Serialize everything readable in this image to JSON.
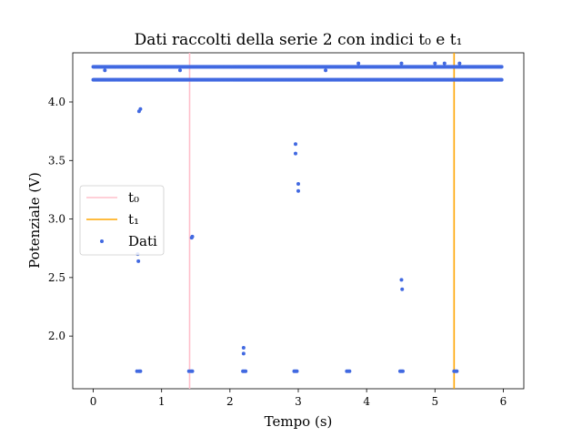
{
  "chart_data": {
    "type": "scatter",
    "title": "Dati raccolti della serie 2 con indici t₀ e t₁",
    "xlabel": "Tempo (s)",
    "ylabel": "Potenziale (V)",
    "xlim": [
      -0.3,
      6.3
    ],
    "ylim": [
      1.55,
      4.42
    ],
    "xticks": [
      0,
      1,
      2,
      3,
      4,
      5,
      6
    ],
    "xtick_labels": [
      "0",
      "1",
      "2",
      "3",
      "4",
      "5",
      "6"
    ],
    "yticks": [
      2.0,
      2.5,
      3.0,
      3.5,
      4.0
    ],
    "ytick_labels": [
      "2.0",
      "2.5",
      "3.0",
      "3.5",
      "4.0"
    ],
    "legend_placement": "center-left",
    "vertical_lines": [
      {
        "name": "t₀",
        "x": 1.41,
        "color": "#ffc0cb"
      },
      {
        "name": "t₁",
        "x": 5.28,
        "color": "#ffa500"
      }
    ],
    "series": [
      {
        "name": "Dati",
        "color": "#4169e1",
        "bands": [
          {
            "y": 4.3,
            "x_start": 0.0,
            "x_end": 5.98
          },
          {
            "y": 4.19,
            "x_start": 0.0,
            "x_end": 5.98
          }
        ],
        "points": [
          [
            0.67,
            3.92
          ],
          [
            0.69,
            3.94
          ],
          [
            0.65,
            2.7
          ],
          [
            0.66,
            2.64
          ],
          [
            1.44,
            2.84
          ],
          [
            1.45,
            2.85
          ],
          [
            2.2,
            1.9
          ],
          [
            2.2,
            1.85
          ],
          [
            2.96,
            3.64
          ],
          [
            2.96,
            3.56
          ],
          [
            3.0,
            3.3
          ],
          [
            3.0,
            3.24
          ],
          [
            4.51,
            2.48
          ],
          [
            4.52,
            2.4
          ],
          [
            0.64,
            1.7
          ],
          [
            0.67,
            1.7
          ],
          [
            0.69,
            1.7
          ],
          [
            1.4,
            1.7
          ],
          [
            1.43,
            1.7
          ],
          [
            1.45,
            1.7
          ],
          [
            2.19,
            1.7
          ],
          [
            2.21,
            1.7
          ],
          [
            2.23,
            1.7
          ],
          [
            2.94,
            1.7
          ],
          [
            2.96,
            1.7
          ],
          [
            2.98,
            1.7
          ],
          [
            3.71,
            1.7
          ],
          [
            3.73,
            1.7
          ],
          [
            3.75,
            1.7
          ],
          [
            4.49,
            1.7
          ],
          [
            4.51,
            1.7
          ],
          [
            4.53,
            1.7
          ],
          [
            5.28,
            1.7
          ],
          [
            5.3,
            1.7
          ],
          [
            5.32,
            1.7
          ],
          [
            3.88,
            4.33
          ],
          [
            4.51,
            4.33
          ],
          [
            5.0,
            4.33
          ],
          [
            5.14,
            4.33
          ],
          [
            5.36,
            4.33
          ],
          [
            0.17,
            4.27
          ],
          [
            1.27,
            4.27
          ],
          [
            3.4,
            4.27
          ]
        ]
      }
    ],
    "legend": [
      "t₀",
      "t₁",
      "Dati"
    ]
  }
}
